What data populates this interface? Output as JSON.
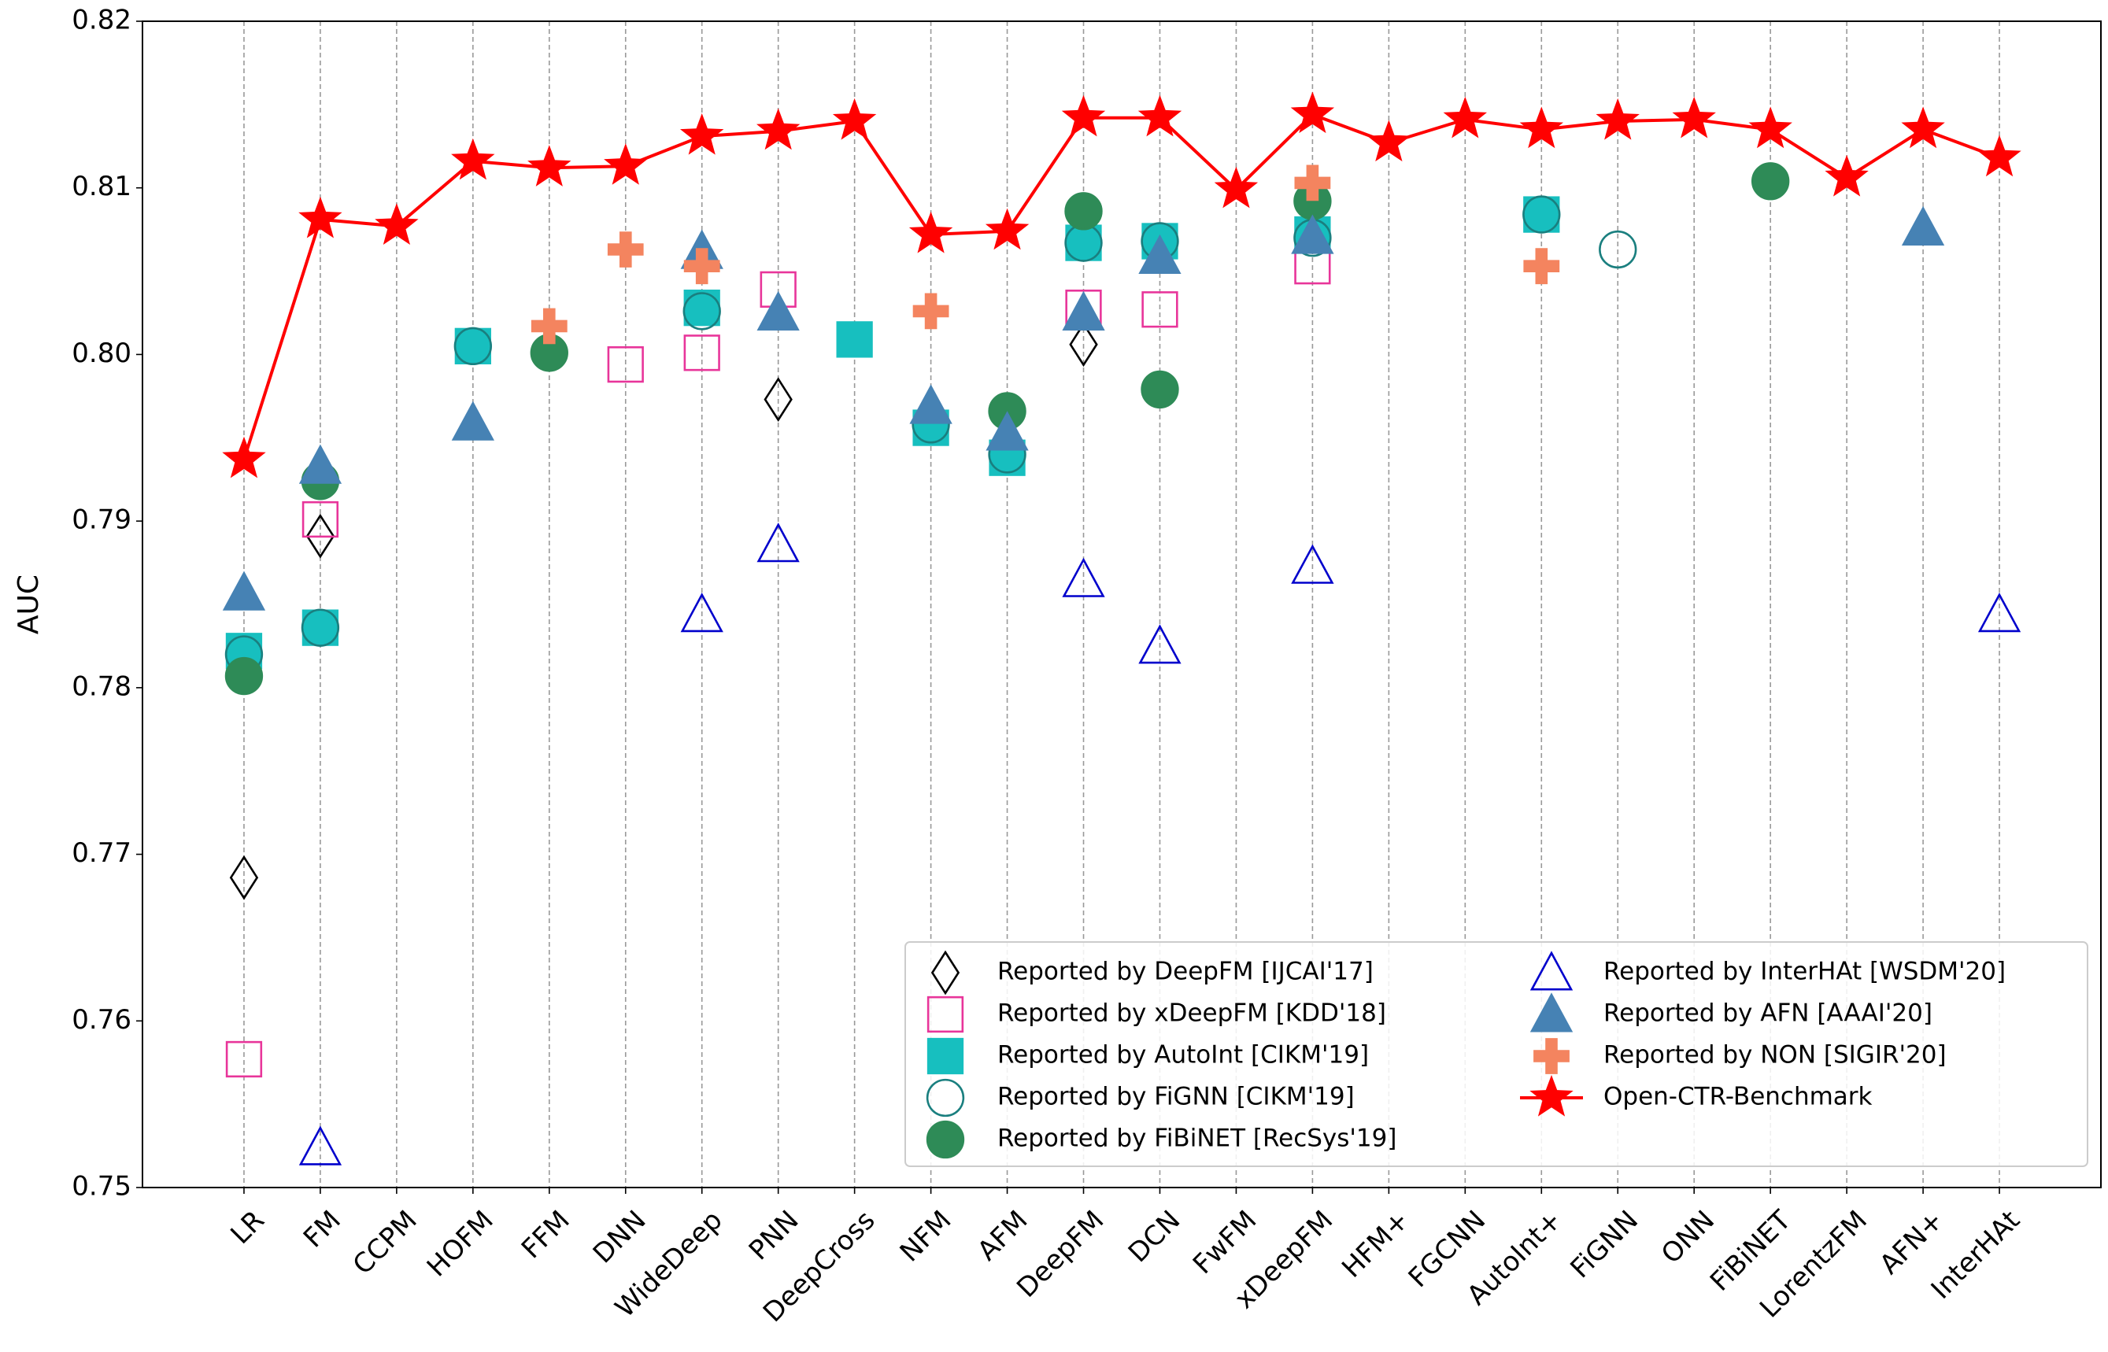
{
  "chart_data": {
    "type": "scatter-line",
    "y_label": "AUC",
    "categories": [
      "LR",
      "FM",
      "CCPM",
      "HOFM",
      "FFM",
      "DNN",
      "WideDeep",
      "PNN",
      "DeepCross",
      "NFM",
      "AFM",
      "DeepFM",
      "DCN",
      "FwFM",
      "xDeepFM",
      "HFM+",
      "FGCNN",
      "AutoInt+",
      "FiGNN",
      "ONN",
      "FiBiNET",
      "LorentzFM",
      "AFN+",
      "InterHAt"
    ],
    "ylim": [
      0.75,
      0.82
    ],
    "yticks": [
      0.75,
      0.76,
      0.77,
      0.78,
      0.79,
      {
        "value": 0.8,
        "label": "0.80"
      },
      0.81,
      0.82
    ],
    "grid": "x",
    "legend": "lower right",
    "series": [
      {
        "name": "Reported by DeepFM [IJCAI'17]",
        "marker": "diamond",
        "filled": false,
        "color": "#000000",
        "values": [
          0.7686,
          0.7891,
          null,
          null,
          null,
          null,
          null,
          0.7973,
          null,
          null,
          null,
          0.8006,
          null,
          null,
          null,
          null,
          null,
          null,
          null,
          null,
          null,
          null,
          null,
          null
        ]
      },
      {
        "name": "Reported by xDeepFM [KDD'18]",
        "marker": "square",
        "filled": false,
        "color": "#e8359a",
        "values": [
          0.7577,
          0.7901,
          null,
          null,
          null,
          0.7994,
          0.8001,
          0.8039,
          null,
          null,
          null,
          0.8028,
          0.8027,
          null,
          0.8053,
          null,
          null,
          null,
          null,
          null,
          null,
          null,
          null,
          null
        ]
      },
      {
        "name": "Reported by AutoInt [CIKM'19]",
        "marker": "square",
        "filled": true,
        "color": "#17bfbf",
        "values": [
          0.7822,
          0.7836,
          null,
          0.8005,
          null,
          null,
          0.8028,
          null,
          0.8009,
          0.7956,
          0.7938,
          0.8067,
          0.8068,
          null,
          0.8072,
          null,
          null,
          0.8084,
          null,
          null,
          null,
          null,
          null,
          null
        ]
      },
      {
        "name": "Reported by FiGNN [CIKM'19]",
        "marker": "circle",
        "filled": false,
        "color": "#1a7f7f",
        "values": [
          0.782,
          0.7836,
          null,
          0.8005,
          null,
          null,
          0.8026,
          null,
          null,
          0.7958,
          0.794,
          0.8067,
          0.8068,
          null,
          0.807,
          null,
          null,
          0.8084,
          0.8063,
          null,
          null,
          null,
          null,
          null
        ]
      },
      {
        "name": "Reported by FiBiNET [RecSys'19]",
        "marker": "circle",
        "filled": true,
        "color": "#2e8b57",
        "values": [
          0.7807,
          0.7924,
          null,
          null,
          0.8001,
          null,
          null,
          null,
          null,
          null,
          0.7966,
          0.8086,
          0.7979,
          null,
          0.8092,
          null,
          null,
          null,
          null,
          null,
          0.8104,
          null,
          null,
          null
        ]
      },
      {
        "name": "Reported by InterHAt [WSDM'20]",
        "marker": "triangle",
        "filled": false,
        "color": "#0000cc",
        "values": [
          null,
          0.7524,
          null,
          null,
          null,
          null,
          0.7844,
          0.7886,
          null,
          null,
          null,
          0.7865,
          0.7825,
          null,
          0.7873,
          null,
          null,
          null,
          null,
          null,
          null,
          null,
          null,
          0.7844
        ]
      },
      {
        "name": "Reported by AFN [AAAI'20]",
        "marker": "triangle",
        "filled": true,
        "color": "#4682b4",
        "values": [
          0.7857,
          0.7933,
          null,
          0.7959,
          null,
          null,
          0.8062,
          0.8025,
          null,
          0.7969,
          0.7953,
          0.8025,
          0.8059,
          null,
          0.8071,
          null,
          null,
          null,
          null,
          null,
          null,
          null,
          0.8076,
          null
        ]
      },
      {
        "name": "Reported by NON [SIGIR'20]",
        "marker": "plus",
        "filled": true,
        "color": "#f4845f",
        "values": [
          null,
          null,
          null,
          null,
          0.8017,
          0.8063,
          0.8053,
          null,
          null,
          0.8026,
          null,
          null,
          null,
          null,
          0.8103,
          null,
          null,
          0.8053,
          null,
          null,
          null,
          null,
          null,
          null
        ]
      },
      {
        "name": "Open-CTR-Benchmark",
        "marker": "star",
        "filled": true,
        "line": true,
        "color": "#ff0000",
        "values": [
          0.7937,
          0.8081,
          0.8077,
          0.8116,
          0.8112,
          0.8113,
          0.8131,
          0.8134,
          0.814,
          0.8072,
          0.8074,
          0.8142,
          0.8142,
          0.8099,
          0.8144,
          0.8127,
          0.8141,
          0.8135,
          0.814,
          0.8141,
          0.8135,
          0.8106,
          0.8135,
          0.8118
        ]
      }
    ]
  }
}
